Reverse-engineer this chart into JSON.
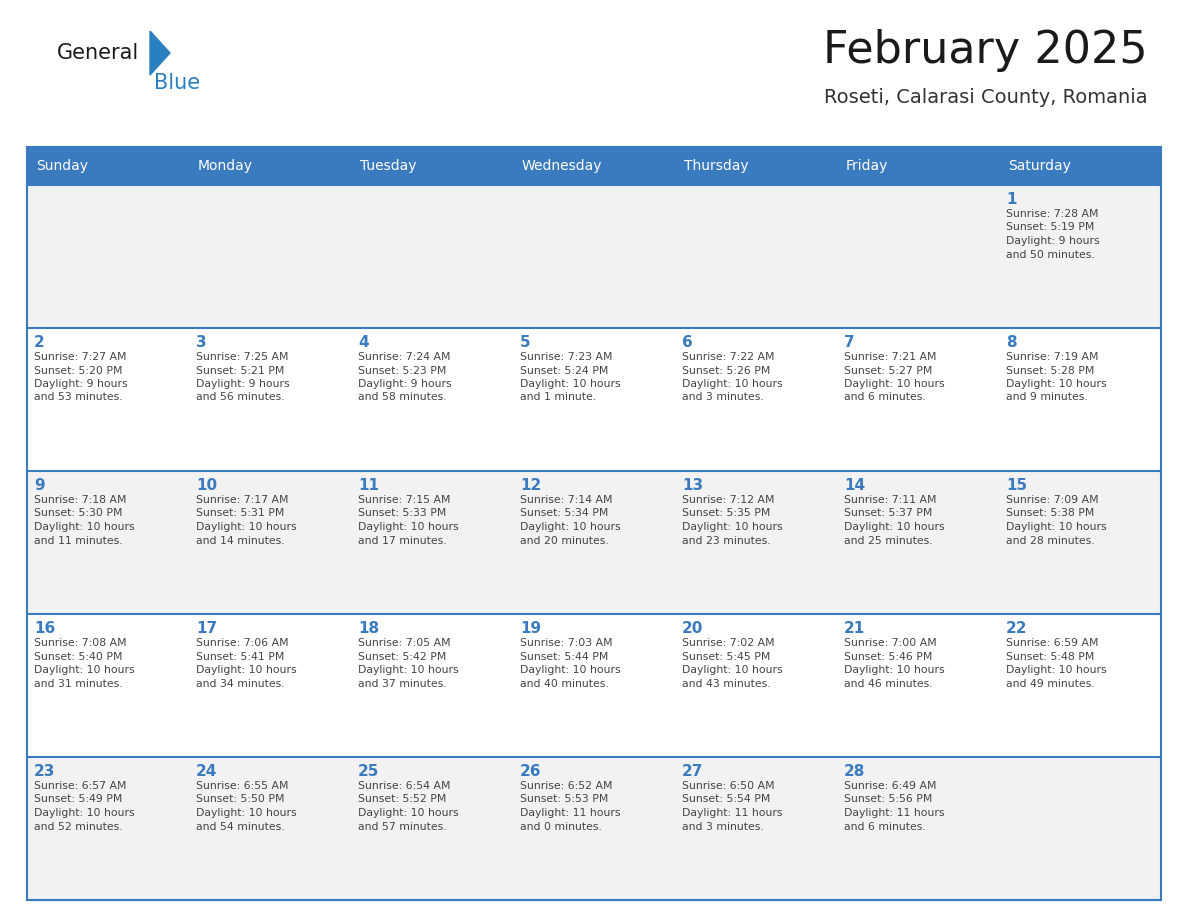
{
  "title": "February 2025",
  "subtitle": "Roseti, Calarasi County, Romania",
  "header_bg": "#3a7abf",
  "header_text_color": "#ffffff",
  "cell_bg_odd": "#f2f2f2",
  "cell_bg_even": "#ffffff",
  "day_number_color": "#3a7abf",
  "text_color": "#444444",
  "border_color": "#3a7abf",
  "days_of_week": [
    "Sunday",
    "Monday",
    "Tuesday",
    "Wednesday",
    "Thursday",
    "Friday",
    "Saturday"
  ],
  "weeks": [
    [
      {
        "day": null,
        "info": null
      },
      {
        "day": null,
        "info": null
      },
      {
        "day": null,
        "info": null
      },
      {
        "day": null,
        "info": null
      },
      {
        "day": null,
        "info": null
      },
      {
        "day": null,
        "info": null
      },
      {
        "day": "1",
        "info": "Sunrise: 7:28 AM\nSunset: 5:19 PM\nDaylight: 9 hours\nand 50 minutes."
      }
    ],
    [
      {
        "day": "2",
        "info": "Sunrise: 7:27 AM\nSunset: 5:20 PM\nDaylight: 9 hours\nand 53 minutes."
      },
      {
        "day": "3",
        "info": "Sunrise: 7:25 AM\nSunset: 5:21 PM\nDaylight: 9 hours\nand 56 minutes."
      },
      {
        "day": "4",
        "info": "Sunrise: 7:24 AM\nSunset: 5:23 PM\nDaylight: 9 hours\nand 58 minutes."
      },
      {
        "day": "5",
        "info": "Sunrise: 7:23 AM\nSunset: 5:24 PM\nDaylight: 10 hours\nand 1 minute."
      },
      {
        "day": "6",
        "info": "Sunrise: 7:22 AM\nSunset: 5:26 PM\nDaylight: 10 hours\nand 3 minutes."
      },
      {
        "day": "7",
        "info": "Sunrise: 7:21 AM\nSunset: 5:27 PM\nDaylight: 10 hours\nand 6 minutes."
      },
      {
        "day": "8",
        "info": "Sunrise: 7:19 AM\nSunset: 5:28 PM\nDaylight: 10 hours\nand 9 minutes."
      }
    ],
    [
      {
        "day": "9",
        "info": "Sunrise: 7:18 AM\nSunset: 5:30 PM\nDaylight: 10 hours\nand 11 minutes."
      },
      {
        "day": "10",
        "info": "Sunrise: 7:17 AM\nSunset: 5:31 PM\nDaylight: 10 hours\nand 14 minutes."
      },
      {
        "day": "11",
        "info": "Sunrise: 7:15 AM\nSunset: 5:33 PM\nDaylight: 10 hours\nand 17 minutes."
      },
      {
        "day": "12",
        "info": "Sunrise: 7:14 AM\nSunset: 5:34 PM\nDaylight: 10 hours\nand 20 minutes."
      },
      {
        "day": "13",
        "info": "Sunrise: 7:12 AM\nSunset: 5:35 PM\nDaylight: 10 hours\nand 23 minutes."
      },
      {
        "day": "14",
        "info": "Sunrise: 7:11 AM\nSunset: 5:37 PM\nDaylight: 10 hours\nand 25 minutes."
      },
      {
        "day": "15",
        "info": "Sunrise: 7:09 AM\nSunset: 5:38 PM\nDaylight: 10 hours\nand 28 minutes."
      }
    ],
    [
      {
        "day": "16",
        "info": "Sunrise: 7:08 AM\nSunset: 5:40 PM\nDaylight: 10 hours\nand 31 minutes."
      },
      {
        "day": "17",
        "info": "Sunrise: 7:06 AM\nSunset: 5:41 PM\nDaylight: 10 hours\nand 34 minutes."
      },
      {
        "day": "18",
        "info": "Sunrise: 7:05 AM\nSunset: 5:42 PM\nDaylight: 10 hours\nand 37 minutes."
      },
      {
        "day": "19",
        "info": "Sunrise: 7:03 AM\nSunset: 5:44 PM\nDaylight: 10 hours\nand 40 minutes."
      },
      {
        "day": "20",
        "info": "Sunrise: 7:02 AM\nSunset: 5:45 PM\nDaylight: 10 hours\nand 43 minutes."
      },
      {
        "day": "21",
        "info": "Sunrise: 7:00 AM\nSunset: 5:46 PM\nDaylight: 10 hours\nand 46 minutes."
      },
      {
        "day": "22",
        "info": "Sunrise: 6:59 AM\nSunset: 5:48 PM\nDaylight: 10 hours\nand 49 minutes."
      }
    ],
    [
      {
        "day": "23",
        "info": "Sunrise: 6:57 AM\nSunset: 5:49 PM\nDaylight: 10 hours\nand 52 minutes."
      },
      {
        "day": "24",
        "info": "Sunrise: 6:55 AM\nSunset: 5:50 PM\nDaylight: 10 hours\nand 54 minutes."
      },
      {
        "day": "25",
        "info": "Sunrise: 6:54 AM\nSunset: 5:52 PM\nDaylight: 10 hours\nand 57 minutes."
      },
      {
        "day": "26",
        "info": "Sunrise: 6:52 AM\nSunset: 5:53 PM\nDaylight: 11 hours\nand 0 minutes."
      },
      {
        "day": "27",
        "info": "Sunrise: 6:50 AM\nSunset: 5:54 PM\nDaylight: 11 hours\nand 3 minutes."
      },
      {
        "day": "28",
        "info": "Sunrise: 6:49 AM\nSunset: 5:56 PM\nDaylight: 11 hours\nand 6 minutes."
      },
      {
        "day": null,
        "info": null
      }
    ]
  ],
  "logo_color_general": "#1a1a1a",
  "logo_color_blue": "#2a7fc1",
  "fig_width": 11.88,
  "fig_height": 9.18,
  "dpi": 100
}
